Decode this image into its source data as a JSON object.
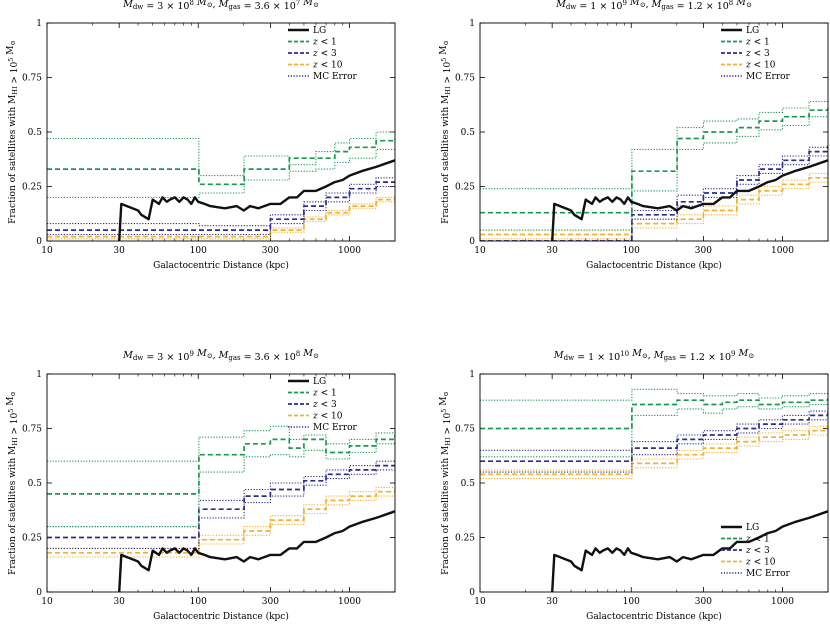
{
  "figure": {
    "xlabel": "Galactocentric Distance (kpc)",
    "ylabel": "Fraction of satellites with M_HI > 10^5 M_sun",
    "x_tick_labels": [
      "10",
      "30",
      "100",
      "300",
      "1000"
    ],
    "y_tick_labels": [
      "0",
      "0.25",
      "0.5",
      "0.75",
      "1"
    ],
    "legend_labels": [
      "LG",
      "z < 1",
      "z < 3",
      "z < 10",
      "MC Error"
    ]
  },
  "chart_data": [
    {
      "type": "line",
      "panel": "top-left",
      "title": "M_dw = 3 × 10^8 M_sun, M_gas = 3.6 × 10^7 M_sun",
      "xscale": "log",
      "xlim": [
        10,
        2000
      ],
      "ylim": [
        0,
        1
      ],
      "legend_position": "top-right",
      "series": [
        {
          "name": "LG",
          "style": "solid",
          "color": "#111111",
          "x": [
            30,
            31,
            40,
            42,
            47,
            50,
            55,
            58,
            62,
            65,
            70,
            75,
            80,
            85,
            90,
            95,
            100,
            110,
            120,
            150,
            180,
            200,
            220,
            250,
            300,
            350,
            400,
            450,
            500,
            600,
            700,
            800,
            900,
            1000,
            1200,
            1500,
            2000
          ],
          "y": [
            0,
            0.17,
            0.14,
            0.12,
            0.1,
            0.19,
            0.17,
            0.2,
            0.18,
            0.19,
            0.2,
            0.18,
            0.2,
            0.19,
            0.17,
            0.2,
            0.18,
            0.17,
            0.16,
            0.15,
            0.16,
            0.14,
            0.16,
            0.15,
            0.17,
            0.17,
            0.2,
            0.2,
            0.23,
            0.23,
            0.25,
            0.27,
            0.28,
            0.3,
            0.32,
            0.34,
            0.37
          ]
        },
        {
          "name": "z < 1",
          "style": "dashed",
          "color": "#1a9850",
          "x": [
            10,
            100,
            101,
            200,
            201,
            400,
            600,
            800,
            1000,
            1500,
            2000
          ],
          "y": [
            0.33,
            0.33,
            0.26,
            0.26,
            0.33,
            0.38,
            0.38,
            0.41,
            0.43,
            0.46,
            0.47
          ],
          "err_low": [
            0.2,
            0.2,
            0.22,
            0.22,
            0.28,
            0.32,
            0.33,
            0.36,
            0.38,
            0.42,
            0.43
          ],
          "err_high": [
            0.47,
            0.47,
            0.3,
            0.3,
            0.39,
            0.35,
            0.41,
            0.45,
            0.47,
            0.5,
            0.51
          ]
        },
        {
          "name": "z < 3",
          "style": "dashed",
          "color": "#2c2c8c",
          "x": [
            10,
            100,
            101,
            200,
            300,
            500,
            700,
            1000,
            1500,
            2000
          ],
          "y": [
            0.05,
            0.05,
            0.05,
            0.05,
            0.1,
            0.16,
            0.2,
            0.24,
            0.27,
            0.29
          ],
          "err_low": [
            0.03,
            0.03,
            0.03,
            0.03,
            0.08,
            0.14,
            0.18,
            0.22,
            0.25,
            0.27
          ],
          "err_high": [
            0.08,
            0.08,
            0.07,
            0.07,
            0.12,
            0.18,
            0.22,
            0.26,
            0.29,
            0.31
          ]
        },
        {
          "name": "z < 10",
          "style": "dashed",
          "color": "#f4b030",
          "x": [
            10,
            100,
            200,
            300,
            500,
            700,
            1000,
            1500,
            2000
          ],
          "y": [
            0.02,
            0.02,
            0.02,
            0.05,
            0.1,
            0.13,
            0.16,
            0.19,
            0.2
          ],
          "err_low": [
            0.01,
            0.01,
            0.01,
            0.04,
            0.09,
            0.12,
            0.15,
            0.18,
            0.19
          ],
          "err_high": [
            0.03,
            0.03,
            0.03,
            0.06,
            0.11,
            0.14,
            0.17,
            0.2,
            0.22
          ]
        }
      ]
    },
    {
      "type": "line",
      "panel": "top-right",
      "title": "M_dw = 1 × 10^9 M_sun, M_gas = 1.2 × 10^8 M_sun",
      "xscale": "log",
      "xlim": [
        10,
        2000
      ],
      "ylim": [
        0,
        1
      ],
      "legend_position": "top-right",
      "series": [
        {
          "name": "LG",
          "style": "solid",
          "color": "#111111",
          "x": [
            30,
            31,
            40,
            42,
            47,
            50,
            55,
            58,
            62,
            65,
            70,
            75,
            80,
            85,
            90,
            95,
            100,
            110,
            120,
            150,
            180,
            200,
            220,
            250,
            300,
            350,
            400,
            450,
            500,
            600,
            700,
            800,
            900,
            1000,
            1200,
            1500,
            2000
          ],
          "y": [
            0,
            0.17,
            0.14,
            0.12,
            0.1,
            0.19,
            0.17,
            0.2,
            0.18,
            0.19,
            0.2,
            0.18,
            0.2,
            0.19,
            0.17,
            0.2,
            0.18,
            0.17,
            0.16,
            0.15,
            0.16,
            0.14,
            0.16,
            0.15,
            0.17,
            0.17,
            0.2,
            0.2,
            0.23,
            0.23,
            0.25,
            0.27,
            0.28,
            0.3,
            0.32,
            0.34,
            0.37
          ]
        },
        {
          "name": "z < 1",
          "style": "dashed",
          "color": "#1a9850",
          "x": [
            10,
            100,
            101,
            200,
            201,
            300,
            500,
            700,
            1000,
            1500,
            2000
          ],
          "y": [
            0.13,
            0.13,
            0.32,
            0.32,
            0.47,
            0.5,
            0.52,
            0.55,
            0.57,
            0.6,
            0.62
          ],
          "err_low": [
            0.05,
            0.05,
            0.23,
            0.23,
            0.42,
            0.45,
            0.48,
            0.51,
            0.53,
            0.57,
            0.59
          ],
          "err_high": [
            0.24,
            0.24,
            0.42,
            0.42,
            0.52,
            0.55,
            0.56,
            0.59,
            0.61,
            0.64,
            0.65
          ]
        },
        {
          "name": "z < 3",
          "style": "dashed",
          "color": "#2c2c8c",
          "x": [
            10,
            100,
            101,
            200,
            201,
            300,
            500,
            700,
            1000,
            1500,
            2000
          ],
          "y": [
            0,
            0,
            0.12,
            0.12,
            0.18,
            0.22,
            0.28,
            0.33,
            0.37,
            0.41,
            0.44
          ],
          "err_low": [
            0,
            0,
            0.1,
            0.1,
            0.16,
            0.2,
            0.26,
            0.31,
            0.35,
            0.39,
            0.42
          ],
          "err_high": [
            0,
            0,
            0.14,
            0.14,
            0.21,
            0.24,
            0.3,
            0.35,
            0.39,
            0.43,
            0.46
          ]
        },
        {
          "name": "z < 10",
          "style": "dashed",
          "color": "#f4b030",
          "x": [
            10,
            100,
            101,
            200,
            300,
            500,
            700,
            1000,
            1500,
            2000
          ],
          "y": [
            0.03,
            0.03,
            0.08,
            0.1,
            0.14,
            0.19,
            0.23,
            0.26,
            0.29,
            0.31
          ],
          "err_low": [
            0.01,
            0.01,
            0.06,
            0.08,
            0.12,
            0.17,
            0.21,
            0.24,
            0.27,
            0.29
          ],
          "err_high": [
            0.05,
            0.05,
            0.1,
            0.12,
            0.16,
            0.21,
            0.25,
            0.28,
            0.31,
            0.33
          ]
        }
      ]
    },
    {
      "type": "line",
      "panel": "bottom-left",
      "title": "M_dw = 3 × 10^9 M_sun, M_gas = 3.6 × 10^8 M_sun",
      "xscale": "log",
      "xlim": [
        10,
        2000
      ],
      "ylim": [
        0,
        1
      ],
      "legend_position": "top-right",
      "series": [
        {
          "name": "LG",
          "style": "solid",
          "color": "#111111",
          "x": [
            30,
            31,
            40,
            42,
            47,
            50,
            55,
            58,
            62,
            65,
            70,
            75,
            80,
            85,
            90,
            95,
            100,
            110,
            120,
            150,
            180,
            200,
            220,
            250,
            300,
            350,
            400,
            450,
            500,
            600,
            700,
            800,
            900,
            1000,
            1200,
            1500,
            2000
          ],
          "y": [
            0,
            0.17,
            0.14,
            0.12,
            0.1,
            0.19,
            0.17,
            0.2,
            0.18,
            0.19,
            0.2,
            0.18,
            0.2,
            0.19,
            0.17,
            0.2,
            0.18,
            0.17,
            0.16,
            0.15,
            0.16,
            0.14,
            0.16,
            0.15,
            0.17,
            0.17,
            0.2,
            0.2,
            0.23,
            0.23,
            0.25,
            0.27,
            0.28,
            0.3,
            0.32,
            0.34,
            0.37
          ]
        },
        {
          "name": "z < 1",
          "style": "dashed",
          "color": "#1a9850",
          "x": [
            10,
            100,
            101,
            200,
            201,
            300,
            400,
            500,
            700,
            1000,
            1500,
            2000
          ],
          "y": [
            0.45,
            0.45,
            0.63,
            0.63,
            0.68,
            0.7,
            0.66,
            0.7,
            0.64,
            0.67,
            0.7,
            0.72
          ],
          "err_low": [
            0.3,
            0.3,
            0.55,
            0.55,
            0.62,
            0.63,
            0.62,
            0.65,
            0.61,
            0.64,
            0.68,
            0.7
          ],
          "err_high": [
            0.6,
            0.6,
            0.71,
            0.71,
            0.74,
            0.76,
            0.7,
            0.72,
            0.68,
            0.7,
            0.73,
            0.75
          ]
        },
        {
          "name": "z < 3",
          "style": "dashed",
          "color": "#2c2c8c",
          "x": [
            10,
            100,
            101,
            200,
            201,
            300,
            500,
            700,
            1000,
            1500,
            2000
          ],
          "y": [
            0.25,
            0.25,
            0.38,
            0.38,
            0.44,
            0.47,
            0.51,
            0.54,
            0.56,
            0.58,
            0.6
          ],
          "err_low": [
            0.2,
            0.2,
            0.34,
            0.34,
            0.41,
            0.44,
            0.49,
            0.52,
            0.54,
            0.56,
            0.58
          ],
          "err_high": [
            0.3,
            0.3,
            0.42,
            0.42,
            0.47,
            0.5,
            0.53,
            0.56,
            0.58,
            0.6,
            0.62
          ]
        },
        {
          "name": "z < 10",
          "style": "dashed",
          "color": "#f4b030",
          "x": [
            10,
            100,
            101,
            200,
            300,
            500,
            700,
            1000,
            1500,
            2000
          ],
          "y": [
            0.18,
            0.18,
            0.24,
            0.28,
            0.33,
            0.38,
            0.42,
            0.44,
            0.46,
            0.47
          ],
          "err_low": [
            0.16,
            0.16,
            0.22,
            0.26,
            0.31,
            0.36,
            0.4,
            0.42,
            0.44,
            0.45
          ],
          "err_high": [
            0.2,
            0.2,
            0.26,
            0.3,
            0.35,
            0.4,
            0.44,
            0.46,
            0.48,
            0.49
          ]
        }
      ]
    },
    {
      "type": "line",
      "panel": "bottom-right",
      "title": "M_dw = 1 × 10^10 M_sun, M_gas = 1.2 × 10^9 M_sun",
      "xscale": "log",
      "xlim": [
        10,
        2000
      ],
      "ylim": [
        0,
        1
      ],
      "legend_position": "bottom-right",
      "series": [
        {
          "name": "LG",
          "style": "solid",
          "color": "#111111",
          "x": [
            30,
            31,
            40,
            42,
            47,
            50,
            55,
            58,
            62,
            65,
            70,
            75,
            80,
            85,
            90,
            95,
            100,
            110,
            120,
            150,
            180,
            200,
            220,
            250,
            300,
            350,
            400,
            450,
            500,
            600,
            700,
            800,
            900,
            1000,
            1200,
            1500,
            2000
          ],
          "y": [
            0,
            0.17,
            0.14,
            0.12,
            0.1,
            0.19,
            0.17,
            0.2,
            0.18,
            0.19,
            0.2,
            0.18,
            0.2,
            0.19,
            0.17,
            0.2,
            0.18,
            0.17,
            0.16,
            0.15,
            0.16,
            0.14,
            0.16,
            0.15,
            0.17,
            0.17,
            0.2,
            0.2,
            0.23,
            0.23,
            0.25,
            0.27,
            0.28,
            0.3,
            0.32,
            0.34,
            0.37
          ]
        },
        {
          "name": "z < 1",
          "style": "dashed",
          "color": "#1a9850",
          "x": [
            10,
            100,
            101,
            200,
            201,
            300,
            400,
            500,
            700,
            1000,
            1500,
            2000
          ],
          "y": [
            0.75,
            0.75,
            0.86,
            0.86,
            0.88,
            0.86,
            0.87,
            0.88,
            0.86,
            0.87,
            0.88,
            0.89
          ],
          "err_low": [
            0.62,
            0.62,
            0.81,
            0.81,
            0.84,
            0.82,
            0.84,
            0.85,
            0.84,
            0.85,
            0.86,
            0.87
          ],
          "err_high": [
            0.88,
            0.88,
            0.93,
            0.93,
            0.91,
            0.9,
            0.9,
            0.91,
            0.89,
            0.9,
            0.91,
            0.91
          ]
        },
        {
          "name": "z < 3",
          "style": "dashed",
          "color": "#2c2c8c",
          "x": [
            10,
            100,
            101,
            200,
            201,
            300,
            500,
            700,
            1000,
            1500,
            2000
          ],
          "y": [
            0.6,
            0.6,
            0.66,
            0.66,
            0.7,
            0.72,
            0.75,
            0.77,
            0.79,
            0.81,
            0.83
          ],
          "err_low": [
            0.55,
            0.55,
            0.63,
            0.63,
            0.68,
            0.7,
            0.73,
            0.75,
            0.77,
            0.79,
            0.81
          ],
          "err_high": [
            0.65,
            0.65,
            0.69,
            0.69,
            0.72,
            0.74,
            0.77,
            0.79,
            0.81,
            0.83,
            0.85
          ]
        },
        {
          "name": "z < 10",
          "style": "dashed",
          "color": "#f4b030",
          "x": [
            10,
            100,
            101,
            200,
            201,
            300,
            500,
            700,
            1000,
            1500,
            2000
          ],
          "y": [
            0.54,
            0.54,
            0.59,
            0.59,
            0.63,
            0.66,
            0.69,
            0.71,
            0.72,
            0.74,
            0.76
          ],
          "err_low": [
            0.52,
            0.52,
            0.57,
            0.57,
            0.61,
            0.64,
            0.67,
            0.69,
            0.7,
            0.72,
            0.74
          ],
          "err_high": [
            0.56,
            0.56,
            0.61,
            0.61,
            0.65,
            0.68,
            0.71,
            0.73,
            0.74,
            0.76,
            0.78
          ]
        }
      ]
    }
  ]
}
